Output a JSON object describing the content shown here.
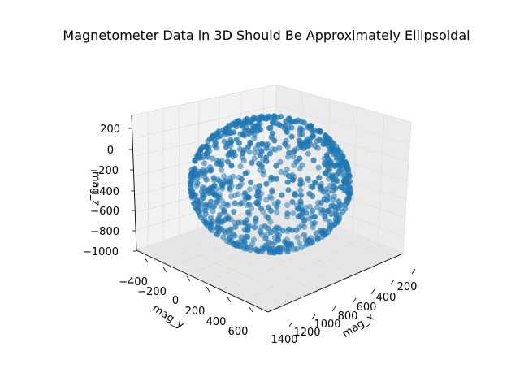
{
  "chart_data": {
    "type": "scatter",
    "title": "Magnetometer Data in 3D Should Be Approximately Ellipsoidal",
    "xlabel": "mag_x",
    "ylabel": "mag_y",
    "zlabel": "mag_z",
    "x_ticks": [
      "200",
      "400",
      "600",
      "800",
      "1000",
      "1200",
      "1400"
    ],
    "y_ticks": [
      "−400",
      "−200",
      "0",
      "200",
      "400",
      "600"
    ],
    "z_ticks": [
      "200",
      "0",
      "−200",
      "−400",
      "−600",
      "−800",
      "−1000"
    ],
    "xlim": [
      150,
      1450
    ],
    "ylim": [
      -450,
      650
    ],
    "zlim": [
      -1050,
      250
    ],
    "grid": true,
    "marker_color": "#1f77b4",
    "series": [
      {
        "ellipsoid_center": {
          "x": 760,
          "y": 90,
          "z": -420
        },
        "ellipsoid_radii": {
          "x": 560,
          "y": 460,
          "z": 560
        },
        "points": []
      }
    ]
  }
}
